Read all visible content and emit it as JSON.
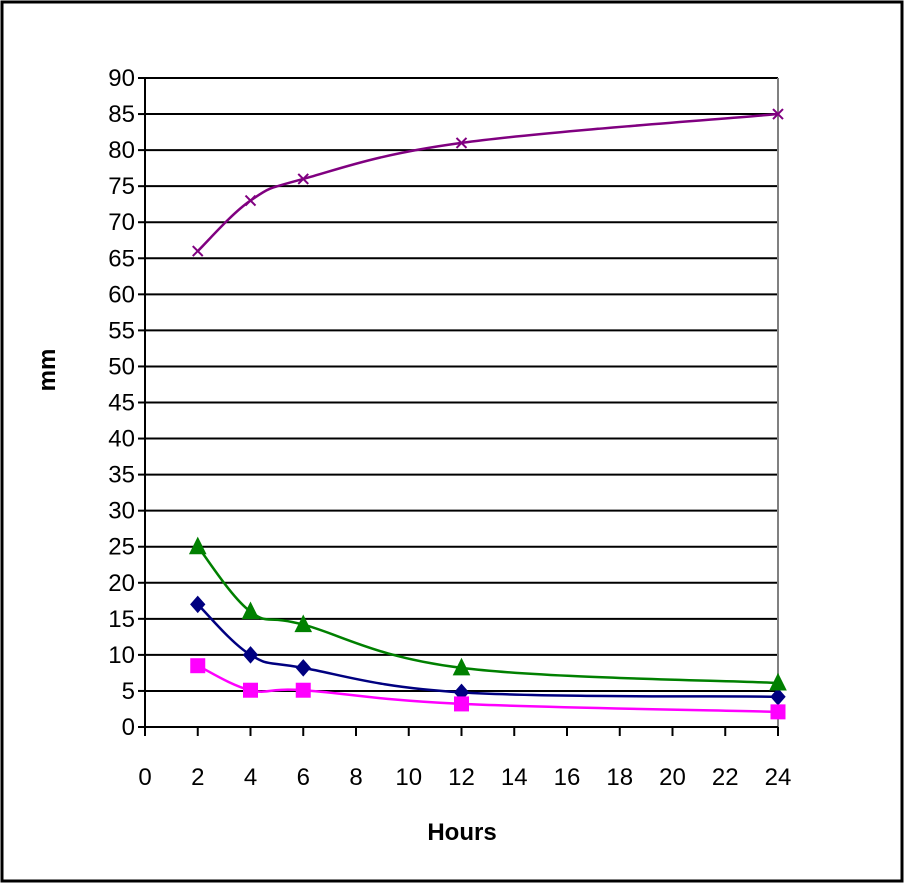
{
  "chart_data": {
    "type": "line",
    "title": "",
    "xlabel": "Hours",
    "ylabel": "mm",
    "xlim": [
      0,
      24
    ],
    "ylim": [
      0,
      90
    ],
    "x_ticks": [
      0,
      2,
      4,
      6,
      8,
      10,
      12,
      14,
      16,
      18,
      20,
      22,
      24
    ],
    "y_ticks": [
      0,
      5,
      10,
      15,
      20,
      25,
      30,
      35,
      40,
      45,
      50,
      55,
      60,
      65,
      70,
      75,
      80,
      85,
      90
    ],
    "grid": "horizontal",
    "legend": "none",
    "series": [
      {
        "color": "#000080",
        "marker": "diamond",
        "points": [
          [
            2,
            17
          ],
          [
            4,
            10
          ],
          [
            6,
            8.2
          ],
          [
            12,
            4.8
          ],
          [
            24,
            4.2
          ]
        ]
      },
      {
        "color": "#ff00ff",
        "marker": "square",
        "points": [
          [
            2,
            8.5
          ],
          [
            4,
            5.1
          ],
          [
            6,
            5.1
          ],
          [
            12,
            3.2
          ],
          [
            24,
            2.1
          ]
        ]
      },
      {
        "color": "#008000",
        "marker": "triangle",
        "points": [
          [
            2,
            25
          ],
          [
            4,
            16
          ],
          [
            6,
            14.2
          ],
          [
            12,
            8.2
          ],
          [
            24,
            6.1
          ]
        ]
      },
      {
        "color": "#800080",
        "marker": "x",
        "points": [
          [
            2,
            66
          ],
          [
            4,
            73
          ],
          [
            6,
            76
          ],
          [
            12,
            81
          ],
          [
            24,
            85
          ]
        ]
      }
    ]
  }
}
